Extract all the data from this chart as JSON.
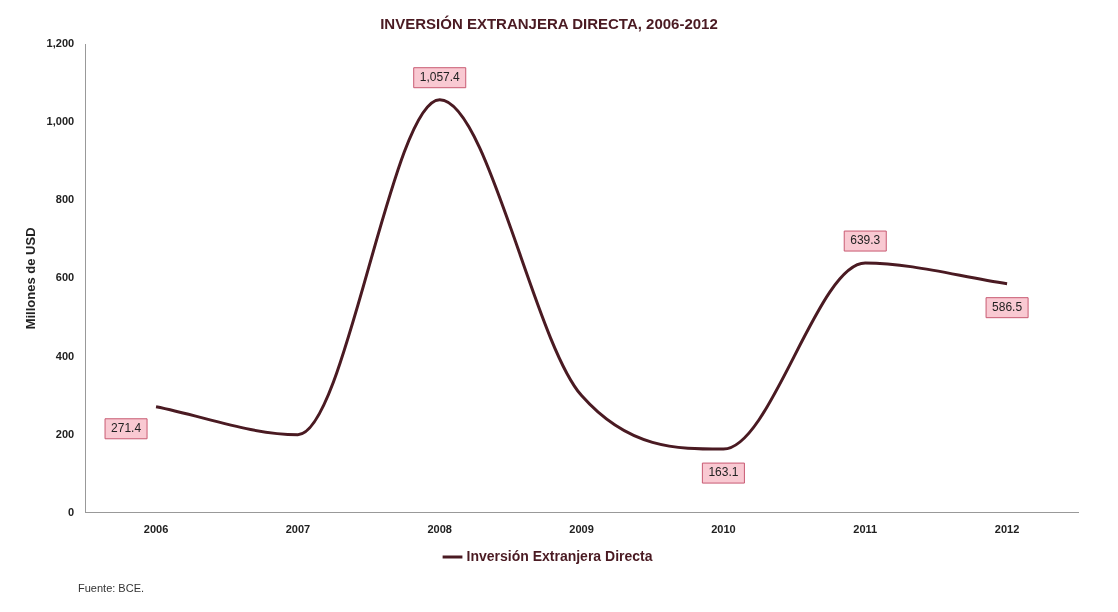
{
  "chart_data": {
    "type": "line",
    "title": "INVERSIÓN EXTRANJERA DIRECTA, 2006-2012",
    "ylabel": "Millones de USD",
    "categories": [
      "2006",
      "2007",
      "2008",
      "2009",
      "2010",
      "2011",
      "2012"
    ],
    "series": [
      {
        "name": "Inversión Extranjera Directa",
        "color": "#4a1a22",
        "values": [
          271.4,
          200,
          1057.4,
          300,
          163.1,
          639.3,
          586.5
        ],
        "value_labels": [
          "271.4",
          null,
          "1,057.4",
          null,
          "163.1",
          "639.3",
          "586.5"
        ]
      }
    ],
    "ylim": [
      0,
      1200
    ],
    "yticks": [
      0,
      {
        "value": 200,
        "label": "200"
      },
      {
        "value": 400,
        "label": "400"
      },
      {
        "value": 600,
        "label": "600"
      },
      {
        "value": 800,
        "label": "800"
      },
      {
        "value": 1000,
        "label": "1,000"
      },
      {
        "value": 1200,
        "label": "1,200"
      }
    ],
    "grid": false,
    "legend": "bottom",
    "marker": "none",
    "line_style": "solid",
    "annotations": [
      "Fuente: BCE."
    ]
  }
}
